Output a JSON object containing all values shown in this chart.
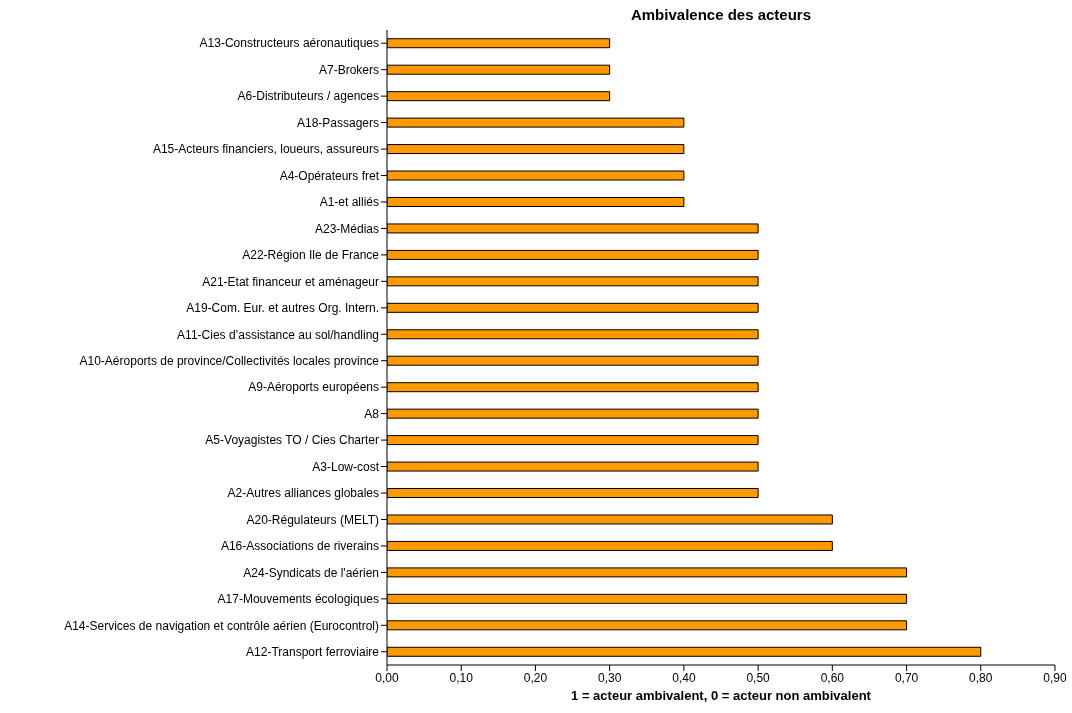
{
  "chart_data": {
    "type": "bar",
    "orientation": "horizontal",
    "title": "Ambivalence des acteurs",
    "xlabel": "1 = acteur ambivalent, 0 = acteur non ambivalent",
    "categories": [
      "A13-Constructeurs aéronautiques",
      "A7-Brokers",
      "A6-Distributeurs / agences",
      "A18-Passagers",
      "A15-Acteurs financiers, loueurs, assureurs",
      "A4-Opérateurs fret",
      "A1-et alliés",
      "A23-Médias",
      "A22-Région Ile de France",
      "A21-Etat financeur et aménageur",
      "A19-Com. Eur. et autres Org. Intern.",
      "A11-Cies d’assistance au sol/handling",
      "A10-Aéroports de province/Collectivités locales province",
      "A9-Aéroports européens",
      "A8",
      "A5-Voyagistes TO / Cies Charter",
      "A3-Low-cost",
      "A2-Autres alliances globales",
      "A20-Régulateurs (MELT)",
      "A16-Associations de riverains",
      "A24-Syndicats de l'aérien",
      "A17-Mouvements écologiques",
      "A14-Services de navigation et contrôle aérien (Eurocontrol)",
      "A12-Transport ferroviaire"
    ],
    "values": [
      0.3,
      0.3,
      0.3,
      0.4,
      0.4,
      0.4,
      0.4,
      0.5,
      0.5,
      0.5,
      0.5,
      0.5,
      0.5,
      0.5,
      0.5,
      0.5,
      0.5,
      0.5,
      0.6,
      0.6,
      0.7,
      0.7,
      0.7,
      0.8
    ],
    "color": "#ff9900",
    "xlim": [
      0,
      0.9
    ],
    "xticks": [
      {
        "value": 0,
        "label": "0,00"
      },
      {
        "value": 0.1,
        "label": "0,10"
      },
      {
        "value": 0.2,
        "label": "0,20"
      },
      {
        "value": 0.3,
        "label": "0,30"
      },
      {
        "value": 0.4,
        "label": "0,40"
      },
      {
        "value": 0.5,
        "label": "0,50"
      },
      {
        "value": 0.6,
        "label": "0,60"
      },
      {
        "value": 0.7,
        "label": "0,70"
      },
      {
        "value": 0.8,
        "label": "0,80"
      },
      {
        "value": 0.9,
        "label": "0,90"
      }
    ],
    "grid": false,
    "legend": false
  }
}
